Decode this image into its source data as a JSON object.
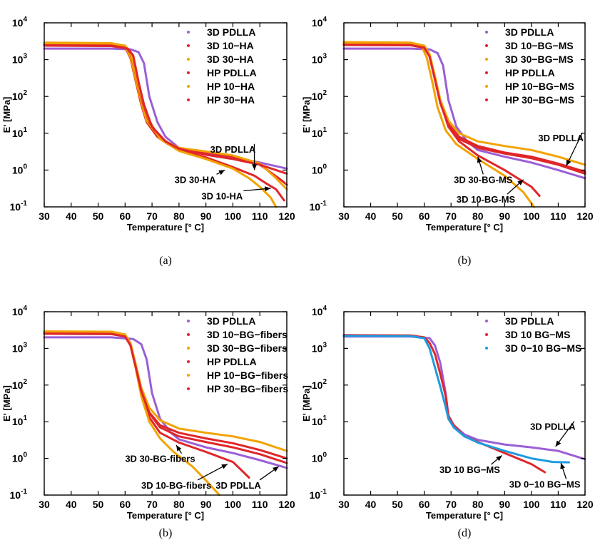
{
  "colors": {
    "purple": "#9b5fd6",
    "red": "#e0262a",
    "orange": "#f2a300",
    "blue": "#1e9bdf",
    "black": "#000000"
  },
  "chart_data": [
    {
      "type": "scatter",
      "caption": "(a)",
      "xlabel": "Temperature [° C]",
      "ylabel": "E' [MPa]",
      "xlim": [
        30,
        120
      ],
      "ylim": [
        0.1,
        10000
      ],
      "yscale": "log",
      "xticks": [
        "30",
        "40",
        "50",
        "60",
        "70",
        "80",
        "90",
        "100",
        "110",
        "120"
      ],
      "yticks": [
        {
          "base": "10",
          "exp": "-1"
        },
        {
          "base": "10",
          "exp": "0"
        },
        {
          "base": "10",
          "exp": "1"
        },
        {
          "base": "10",
          "exp": "2"
        },
        {
          "base": "10",
          "exp": "3"
        },
        {
          "base": "10",
          "exp": "4"
        }
      ],
      "legend": [
        "3D PDLLA",
        "3D 10−HA",
        "3D 30−HA",
        "HP PDLLA",
        "HP 10−HA",
        "HP 30−HA"
      ],
      "legend_position": "top-right",
      "series": [
        {
          "color": "#9b5fd6",
          "x": [
            30,
            55,
            62,
            65,
            67,
            69,
            72,
            75,
            80,
            90,
            100,
            110,
            120
          ],
          "y": [
            2000,
            2000,
            1900,
            1600,
            800,
            100,
            20,
            8,
            4,
            2.8,
            2.2,
            1.6,
            1.1
          ]
        },
        {
          "color": "#e0262a",
          "x": [
            30,
            55,
            60,
            62,
            64,
            66,
            68,
            72,
            76,
            80,
            90,
            100,
            110,
            117,
            120
          ],
          "y": [
            2700,
            2600,
            2200,
            1100,
            250,
            60,
            20,
            8,
            5,
            4,
            3,
            2.3,
            1.4,
            0.6,
            0.4
          ]
        },
        {
          "color": "#f2a300",
          "x": [
            30,
            55,
            60,
            62,
            64,
            66,
            68,
            72,
            76,
            80,
            90,
            100,
            110,
            116,
            120
          ],
          "y": [
            2900,
            2800,
            2300,
            1200,
            280,
            70,
            22,
            9,
            5.5,
            4,
            3.2,
            2.5,
            1.5,
            0.6,
            0.3
          ]
        },
        {
          "color": "#e0262a",
          "x": [
            30,
            55,
            60,
            62,
            64,
            66,
            69,
            73,
            80,
            90,
            100,
            108,
            112,
            116,
            119
          ],
          "y": [
            2600,
            2550,
            2300,
            1500,
            400,
            90,
            20,
            7,
            3.5,
            2.2,
            1.2,
            0.7,
            0.45,
            0.3,
            0.15
          ]
        },
        {
          "color": "#f2a300",
          "x": [
            30,
            55,
            60,
            62,
            64,
            66,
            69,
            73,
            80,
            90,
            100,
            106,
            110,
            114,
            116
          ],
          "y": [
            2800,
            2750,
            2400,
            1600,
            420,
            100,
            22,
            7,
            3.3,
            2,
            1.1,
            0.6,
            0.35,
            0.18,
            0.1
          ]
        },
        {
          "color": "#e0262a",
          "x": [
            30,
            55,
            61,
            63,
            65,
            67,
            70,
            75,
            80,
            90,
            100,
            110,
            120
          ],
          "y": [
            2400,
            2350,
            2000,
            1300,
            250,
            60,
            15,
            6,
            3.8,
            2.6,
            2,
            1.4,
            0.8
          ]
        }
      ],
      "annotations": [
        {
          "text": "3D PDLLA",
          "x": 100,
          "y": 3.0,
          "tx": 108,
          "ty": 1.0
        },
        {
          "text": "3D 30-HA",
          "x": 86,
          "y": 0.45,
          "tx": 97,
          "ty": 1.0
        },
        {
          "text": "3D 10-HA",
          "x": 96,
          "y": 0.16,
          "tx": 114,
          "ty": 0.32
        }
      ]
    },
    {
      "type": "scatter",
      "caption": "(b)",
      "xlabel": "Temperature [° C]",
      "ylabel": "E' [MPa]",
      "xlim": [
        30,
        120
      ],
      "ylim": [
        0.1,
        10000
      ],
      "yscale": "log",
      "xticks": [
        "30",
        "40",
        "50",
        "60",
        "70",
        "80",
        "90",
        "100",
        "110",
        "120"
      ],
      "yticks": [
        {
          "base": "10",
          "exp": "-1"
        },
        {
          "base": "10",
          "exp": "0"
        },
        {
          "base": "10",
          "exp": "1"
        },
        {
          "base": "10",
          "exp": "2"
        },
        {
          "base": "10",
          "exp": "3"
        },
        {
          "base": "10",
          "exp": "4"
        }
      ],
      "legend": [
        "3D PDLLA",
        "3D 10−BG−MS",
        "3D 30−BG−MS",
        "HP PDLLA",
        "HP 10−BG−MS",
        "HP 30−BG−MS"
      ],
      "legend_position": "top-right",
      "series": [
        {
          "color": "#9b5fd6",
          "x": [
            30,
            55,
            62,
            65,
            67,
            69,
            72,
            76,
            80,
            90,
            100,
            110,
            120
          ],
          "y": [
            2000,
            2000,
            1900,
            1500,
            700,
            80,
            15,
            6,
            3.5,
            2.3,
            1.6,
            1.0,
            0.6
          ]
        },
        {
          "color": "#e0262a",
          "x": [
            30,
            55,
            60,
            62,
            64,
            66,
            69,
            73,
            80,
            90,
            100,
            103
          ],
          "y": [
            2800,
            2700,
            2300,
            1200,
            300,
            70,
            15,
            6,
            2.5,
            1.0,
            0.35,
            0.2
          ]
        },
        {
          "color": "#f2a300",
          "x": [
            30,
            55,
            59,
            61,
            63,
            65,
            68,
            72,
            80,
            90,
            97,
            101
          ],
          "y": [
            3000,
            2900,
            2400,
            1100,
            250,
            50,
            12,
            5,
            2.0,
            0.7,
            0.25,
            0.1
          ]
        },
        {
          "color": "#e0262a",
          "x": [
            30,
            55,
            60,
            62,
            64,
            66,
            69,
            73,
            80,
            90,
            100,
            110,
            120
          ],
          "y": [
            2600,
            2550,
            2200,
            1300,
            300,
            70,
            18,
            8,
            4.5,
            3,
            2.3,
            1.5,
            0.9
          ]
        },
        {
          "color": "#f2a300",
          "x": [
            30,
            55,
            60,
            62,
            64,
            66,
            69,
            73,
            80,
            90,
            100,
            110,
            120
          ],
          "y": [
            2900,
            2850,
            2400,
            1400,
            350,
            80,
            22,
            10,
            6,
            4.5,
            3.5,
            2.3,
            1.4
          ]
        },
        {
          "color": "#e0262a",
          "x": [
            30,
            55,
            60,
            62,
            64,
            66,
            69,
            73,
            80,
            90,
            100,
            110,
            120
          ],
          "y": [
            2500,
            2450,
            2100,
            1200,
            280,
            65,
            17,
            7,
            4,
            2.8,
            2.1,
            1.4,
            0.8
          ]
        }
      ],
      "annotations": [
        {
          "text": "3D PDLLA",
          "x": 111,
          "y": 6.0,
          "tx": 113,
          "ty": 1.3
        },
        {
          "text": "3D 30-BG-MS",
          "x": 82,
          "y": 0.45,
          "tx": 80,
          "ty": 2.3
        },
        {
          "text": "3D 10-BG-MS",
          "x": 83,
          "y": 0.13,
          "tx": 97,
          "ty": 0.55
        }
      ]
    },
    {
      "type": "scatter",
      "caption": "(b)",
      "xlabel": "Temperature [° C]",
      "ylabel": "E' [MPa]",
      "xlim": [
        30,
        120
      ],
      "ylim": [
        0.1,
        10000
      ],
      "yscale": "log",
      "xticks": [
        "30",
        "40",
        "50",
        "60",
        "70",
        "80",
        "90",
        "100",
        "110",
        "120"
      ],
      "yticks": [
        {
          "base": "10",
          "exp": "-1"
        },
        {
          "base": "10",
          "exp": "0"
        },
        {
          "base": "10",
          "exp": "1"
        },
        {
          "base": "10",
          "exp": "2"
        },
        {
          "base": "10",
          "exp": "3"
        },
        {
          "base": "10",
          "exp": "4"
        }
      ],
      "legend": [
        "3D PDLLA",
        "3D 10−BG−fibers",
        "3D 30−BG−fibers",
        "HP PDLLA",
        "HP 10−BG−fibers",
        "HP 30−BG−fibers"
      ],
      "legend_position": "top-right",
      "series": [
        {
          "color": "#9b5fd6",
          "x": [
            30,
            55,
            63,
            66,
            68,
            70,
            73,
            77,
            80,
            90,
            100,
            110,
            120
          ],
          "y": [
            2000,
            2000,
            1800,
            1300,
            500,
            60,
            12,
            5,
            3.3,
            2.0,
            1.4,
            0.9,
            0.55
          ]
        },
        {
          "color": "#e0262a",
          "x": [
            30,
            55,
            60,
            62,
            64,
            66,
            69,
            73,
            80,
            90,
            100,
            106
          ],
          "y": [
            2700,
            2600,
            2300,
            1200,
            300,
            60,
            13,
            5,
            2.7,
            1.5,
            0.8,
            0.3
          ]
        },
        {
          "color": "#f2a300",
          "x": [
            30,
            55,
            60,
            62,
            64,
            66,
            69,
            73,
            78,
            85,
            90,
            95
          ],
          "y": [
            2900,
            2800,
            2400,
            1200,
            280,
            50,
            10,
            3.5,
            1.5,
            0.6,
            0.25,
            0.1
          ]
        },
        {
          "color": "#e0262a",
          "x": [
            30,
            55,
            60,
            62,
            64,
            66,
            69,
            73,
            80,
            90,
            100,
            110,
            120
          ],
          "y": [
            2600,
            2550,
            2200,
            1300,
            320,
            75,
            18,
            8,
            5,
            3.5,
            2.6,
            1.7,
            1.0
          ]
        },
        {
          "color": "#f2a300",
          "x": [
            30,
            55,
            60,
            62,
            64,
            66,
            69,
            73,
            80,
            90,
            100,
            110,
            120
          ],
          "y": [
            2900,
            2850,
            2400,
            1400,
            360,
            85,
            24,
            11,
            6.5,
            5,
            4,
            2.8,
            1.6
          ]
        },
        {
          "color": "#e0262a",
          "x": [
            30,
            55,
            60,
            62,
            64,
            66,
            69,
            73,
            80,
            90,
            100,
            110,
            120
          ],
          "y": [
            2500,
            2450,
            2100,
            1200,
            300,
            70,
            17,
            7,
            4,
            2.8,
            2.0,
            1.3,
            0.75
          ]
        }
      ],
      "annotations": [
        {
          "text": "3D 30-BG-fibers",
          "x": 73,
          "y": 0.8,
          "tx": 79,
          "ty": 2.3
        },
        {
          "text": "3D 10-BG-fibers",
          "x": 79,
          "y": 0.15,
          "tx": 98,
          "ty": 0.7
        },
        {
          "text": "3D PDLLA",
          "x": 102,
          "y": 0.15,
          "tx": 117,
          "ty": 0.6
        }
      ]
    },
    {
      "type": "scatter",
      "caption": "(d)",
      "xlabel": "Temperature [° C]",
      "ylabel": "E' [MPa]",
      "xlim": [
        30,
        120
      ],
      "ylim": [
        0.1,
        10000
      ],
      "yscale": "log",
      "xticks": [
        "30",
        "40",
        "50",
        "60",
        "70",
        "80",
        "90",
        "100",
        "110",
        "120"
      ],
      "yticks": [
        {
          "base": "10",
          "exp": "-1"
        },
        {
          "base": "10",
          "exp": "0"
        },
        {
          "base": "10",
          "exp": "1"
        },
        {
          "base": "10",
          "exp": "2"
        },
        {
          "base": "10",
          "exp": "3"
        },
        {
          "base": "10",
          "exp": "4"
        }
      ],
      "legend": [
        "3D PDLLA",
        "3D 10 BG−MS",
        "3D 0−10 BG−MS"
      ],
      "legend_position": "top-right",
      "series": [
        {
          "color": "#9b5fd6",
          "x": [
            30,
            55,
            62,
            64,
            66,
            68,
            69,
            71,
            75,
            80,
            90,
            100,
            110,
            120
          ],
          "y": [
            2100,
            2100,
            1900,
            1200,
            400,
            60,
            15,
            8,
            4.5,
            3.2,
            2.4,
            2.0,
            1.6,
            0.95
          ]
        },
        {
          "color": "#e0262a",
          "x": [
            30,
            55,
            60,
            62,
            64,
            66,
            68,
            69,
            71,
            75,
            80,
            90,
            100,
            105
          ],
          "y": [
            2300,
            2250,
            2000,
            1400,
            700,
            200,
            50,
            14,
            8,
            4,
            2.8,
            1.4,
            0.7,
            0.42
          ]
        },
        {
          "color": "#1e9bdf",
          "x": [
            30,
            55,
            60,
            62,
            64,
            66,
            68,
            69,
            71,
            75,
            80,
            90,
            100,
            108,
            114
          ],
          "y": [
            2200,
            2150,
            1900,
            1000,
            300,
            90,
            25,
            12,
            7,
            4,
            2.7,
            1.6,
            1.0,
            0.8,
            0.78
          ]
        }
      ],
      "annotations": [
        {
          "text": "3D PDLLA",
          "x": 108,
          "y": 6.0,
          "tx": 109,
          "ty": 2.1
        },
        {
          "text": "3D 10 BG−MS",
          "x": 77,
          "y": 0.4,
          "tx": 89,
          "ty": 1.2
        },
        {
          "text": "3D 0−10 BG−MS",
          "x": 105,
          "y": 0.16,
          "tx": 111,
          "ty": 0.75
        }
      ]
    }
  ]
}
